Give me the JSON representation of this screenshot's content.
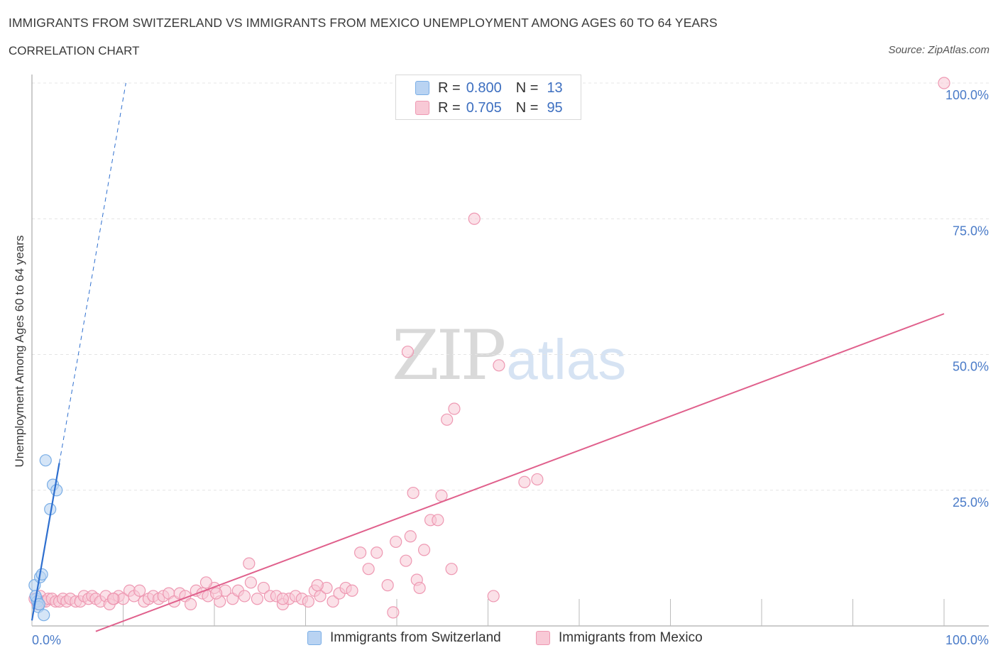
{
  "chart_data": {
    "type": "scatter",
    "title": "IMMIGRANTS FROM SWITZERLAND VS IMMIGRANTS FROM MEXICO UNEMPLOYMENT AMONG AGES 60 TO 64 YEARS",
    "subtitle": "CORRELATION CHART",
    "source": "Source: ZipAtlas.com",
    "watermark": {
      "zip": "ZIP",
      "atlas": "atlas"
    },
    "xlabel": "",
    "ylabel": "Unemployment Among Ages 60 to 64 years",
    "xlim": [
      0,
      100
    ],
    "ylim": [
      0,
      100
    ],
    "x_tick_labels": {
      "min": "0.0%",
      "max": "100.0%"
    },
    "y_tick_labels": [
      {
        "value": 25,
        "label": "25.0%"
      },
      {
        "value": 50,
        "label": "50.0%"
      },
      {
        "value": 75,
        "label": "75.0%"
      },
      {
        "value": 100,
        "label": "100.0%"
      }
    ],
    "legend_position": "top-center",
    "series": [
      {
        "name": "Immigrants from Switzerland",
        "color": "#7aaee6",
        "fill": "#b9d3f2",
        "line_color": "#2e6fcf",
        "R_label": "R =",
        "R": "0.800",
        "N_label": "N =",
        "N": "13",
        "trend": {
          "x0": 0.0,
          "y0": 1.0,
          "x1": 3.0,
          "y1": 30.0,
          "dash_x1": 10.3,
          "dash_y1": 100.0
        },
        "points": [
          [
            0.3,
            7.5
          ],
          [
            0.5,
            5.0
          ],
          [
            0.6,
            4.5
          ],
          [
            0.7,
            3.5
          ],
          [
            0.9,
            9.0
          ],
          [
            1.1,
            9.5
          ],
          [
            1.3,
            2.0
          ],
          [
            1.5,
            30.5
          ],
          [
            2.0,
            21.5
          ],
          [
            2.3,
            26.0
          ],
          [
            2.7,
            25.0
          ],
          [
            0.4,
            5.5
          ],
          [
            0.8,
            4.0
          ]
        ]
      },
      {
        "name": "Immigrants from Mexico",
        "color": "#ee98b2",
        "fill": "#f8c9d6",
        "line_color": "#e0608c",
        "R_label": "R =",
        "R": "0.705",
        "N_label": "N =",
        "N": "95",
        "trend": {
          "x0": 7.0,
          "y0": -1.0,
          "x1": 100.0,
          "y1": 57.5
        },
        "points": [
          [
            0.3,
            5.0
          ],
          [
            0.6,
            4.0
          ],
          [
            0.9,
            5.5
          ],
          [
            1.2,
            4.5
          ],
          [
            1.5,
            4.5
          ],
          [
            1.8,
            5.0
          ],
          [
            2.2,
            5.0
          ],
          [
            2.6,
            4.5
          ],
          [
            3.0,
            4.5
          ],
          [
            3.4,
            5.0
          ],
          [
            3.8,
            4.5
          ],
          [
            4.2,
            5.0
          ],
          [
            4.8,
            4.5
          ],
          [
            5.3,
            4.5
          ],
          [
            5.7,
            5.5
          ],
          [
            6.2,
            5.0
          ],
          [
            6.6,
            5.5
          ],
          [
            7.0,
            5.0
          ],
          [
            7.5,
            4.5
          ],
          [
            8.1,
            5.5
          ],
          [
            8.5,
            4.0
          ],
          [
            9.0,
            5.0
          ],
          [
            9.5,
            5.5
          ],
          [
            10.0,
            5.0
          ],
          [
            10.7,
            6.5
          ],
          [
            11.2,
            5.5
          ],
          [
            11.8,
            6.5
          ],
          [
            12.3,
            4.5
          ],
          [
            12.8,
            5.0
          ],
          [
            13.3,
            5.5
          ],
          [
            13.9,
            5.0
          ],
          [
            14.4,
            5.5
          ],
          [
            15.0,
            6.0
          ],
          [
            15.6,
            4.5
          ],
          [
            16.2,
            6.0
          ],
          [
            16.8,
            5.5
          ],
          [
            17.4,
            4.0
          ],
          [
            18.0,
            6.5
          ],
          [
            18.7,
            6.0
          ],
          [
            19.3,
            5.5
          ],
          [
            20.0,
            7.0
          ],
          [
            20.6,
            4.5
          ],
          [
            21.2,
            6.5
          ],
          [
            22.0,
            5.0
          ],
          [
            22.6,
            6.5
          ],
          [
            23.3,
            5.5
          ],
          [
            24.0,
            8.0
          ],
          [
            24.7,
            5.0
          ],
          [
            25.4,
            7.0
          ],
          [
            26.1,
            5.5
          ],
          [
            26.8,
            5.5
          ],
          [
            27.5,
            4.0
          ],
          [
            28.2,
            5.0
          ],
          [
            28.9,
            5.5
          ],
          [
            29.6,
            5.0
          ],
          [
            30.3,
            4.5
          ],
          [
            31.0,
            6.5
          ],
          [
            31.6,
            5.5
          ],
          [
            32.3,
            7.0
          ],
          [
            33.0,
            4.5
          ],
          [
            33.7,
            6.0
          ],
          [
            34.4,
            7.0
          ],
          [
            35.1,
            6.5
          ],
          [
            27.5,
            5.0
          ],
          [
            23.8,
            11.5
          ],
          [
            19.1,
            8.0
          ],
          [
            31.3,
            7.5
          ],
          [
            36.9,
            10.5
          ],
          [
            36.0,
            13.5
          ],
          [
            37.8,
            13.5
          ],
          [
            39.0,
            7.5
          ],
          [
            39.6,
            2.5
          ],
          [
            39.9,
            15.5
          ],
          [
            41.0,
            12.0
          ],
          [
            41.5,
            16.5
          ],
          [
            42.2,
            8.5
          ],
          [
            42.5,
            7.0
          ],
          [
            41.2,
            50.5
          ],
          [
            41.8,
            24.5
          ],
          [
            43.0,
            14.0
          ],
          [
            43.7,
            19.5
          ],
          [
            44.5,
            19.5
          ],
          [
            44.9,
            24.0
          ],
          [
            45.5,
            38.0
          ],
          [
            46.0,
            10.5
          ],
          [
            46.3,
            40.0
          ],
          [
            48.5,
            75.0
          ],
          [
            50.6,
            5.5
          ],
          [
            51.2,
            48.0
          ],
          [
            54.0,
            26.5
          ],
          [
            55.4,
            27.0
          ],
          [
            100.0,
            100.0
          ],
          [
            20.2,
            6.0
          ],
          [
            8.9,
            5.0
          ]
        ]
      }
    ]
  },
  "legend": {
    "bottom_labels": [
      "Immigrants from Switzerland",
      "Immigrants from Mexico"
    ]
  }
}
